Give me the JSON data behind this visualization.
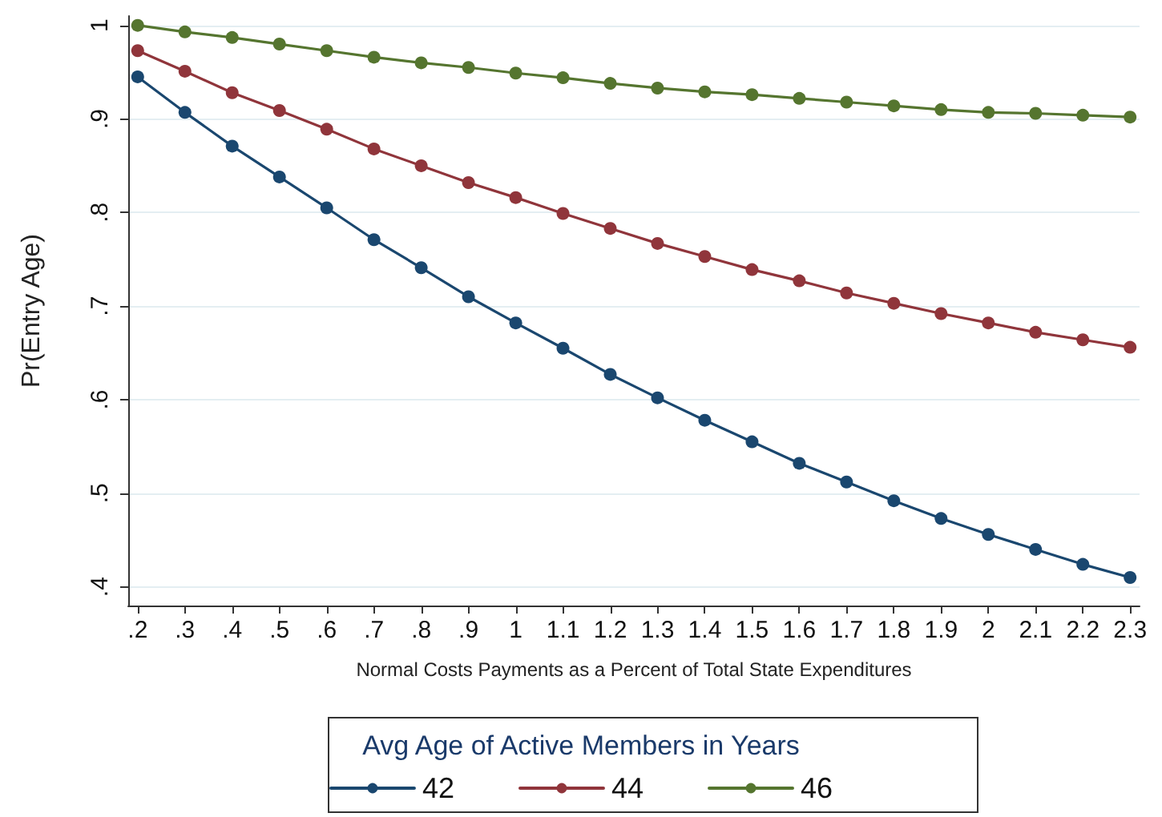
{
  "chart_data": {
    "type": "line",
    "xlabel": "Normal Costs Payments as a Percent of Total State Expenditures",
    "ylabel": "Pr(Entry Age)",
    "legend_title": "Avg Age of Active Members in Years",
    "x": [
      0.2,
      0.3,
      0.4,
      0.5,
      0.6,
      0.7,
      0.8,
      0.9,
      1,
      1.1,
      1.2,
      1.3,
      1.4,
      1.5,
      1.6,
      1.7,
      1.8,
      1.9,
      2,
      2.1,
      2.2,
      2.3
    ],
    "series": [
      {
        "name": "42",
        "color": "#1a476f",
        "values": [
          0.945,
          0.907,
          0.871,
          0.838,
          0.805,
          0.771,
          0.741,
          0.71,
          0.682,
          0.655,
          0.627,
          0.602,
          0.578,
          0.555,
          0.532,
          0.512,
          0.492,
          0.473,
          0.456,
          0.44,
          0.424,
          0.41
        ]
      },
      {
        "name": "44",
        "color": "#90353b",
        "values": [
          0.973,
          0.951,
          0.928,
          0.909,
          0.889,
          0.868,
          0.85,
          0.832,
          0.816,
          0.799,
          0.783,
          0.767,
          0.753,
          0.739,
          0.727,
          0.714,
          0.703,
          0.692,
          0.682,
          0.672,
          0.664,
          0.656
        ]
      },
      {
        "name": "46",
        "color": "#55752f",
        "values": [
          1.0,
          0.993,
          0.987,
          0.98,
          0.973,
          0.966,
          0.96,
          0.955,
          0.949,
          0.944,
          0.938,
          0.933,
          0.929,
          0.926,
          0.922,
          0.918,
          0.914,
          0.91,
          0.907,
          0.906,
          0.904,
          0.902
        ]
      }
    ],
    "xlim": [
      0.18,
      2.32
    ],
    "xticks": [
      {
        "value": 0.2,
        "label": ".2"
      },
      {
        "value": 0.3,
        "label": ".3"
      },
      {
        "value": 0.4,
        "label": ".4"
      },
      {
        "value": 0.5,
        "label": ".5"
      },
      {
        "value": 0.6,
        "label": ".6"
      },
      {
        "value": 0.7,
        "label": ".7"
      },
      {
        "value": 0.8,
        "label": ".8"
      },
      {
        "value": 0.9,
        "label": ".9"
      },
      1,
      1.1,
      1.2,
      1.3,
      1.4,
      1.5,
      1.6,
      1.7,
      1.8,
      1.9,
      2,
      2.1,
      2.2,
      2.3
    ],
    "ylim": [
      0.38,
      1.01
    ],
    "yticks": [
      {
        "value": 0.4,
        "label": ".4"
      },
      {
        "value": 0.5,
        "label": ".5"
      },
      {
        "value": 0.6,
        "label": ".6"
      },
      {
        "value": 0.7,
        "label": ".7"
      },
      {
        "value": 0.8,
        "label": ".8"
      },
      {
        "value": 0.9,
        "label": ".9"
      },
      1
    ],
    "grid": "y",
    "legend": "bottom",
    "marker": "circle",
    "line_style": "solid"
  }
}
